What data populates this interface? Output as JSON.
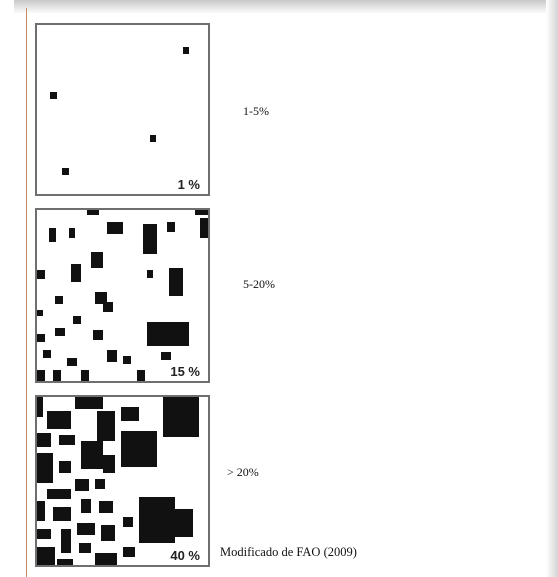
{
  "panels": [
    {
      "percent_label": "1 %",
      "range_label": "1-5%"
    },
    {
      "percent_label": "15 %",
      "range_label": "5-20%"
    },
    {
      "percent_label": "40 %",
      "range_label": "> 20%"
    }
  ],
  "caption": "Modificado de FAO (2009)",
  "colors": {
    "patch": "#111111",
    "border": "#6f6f6f",
    "background": "#ffffff"
  }
}
